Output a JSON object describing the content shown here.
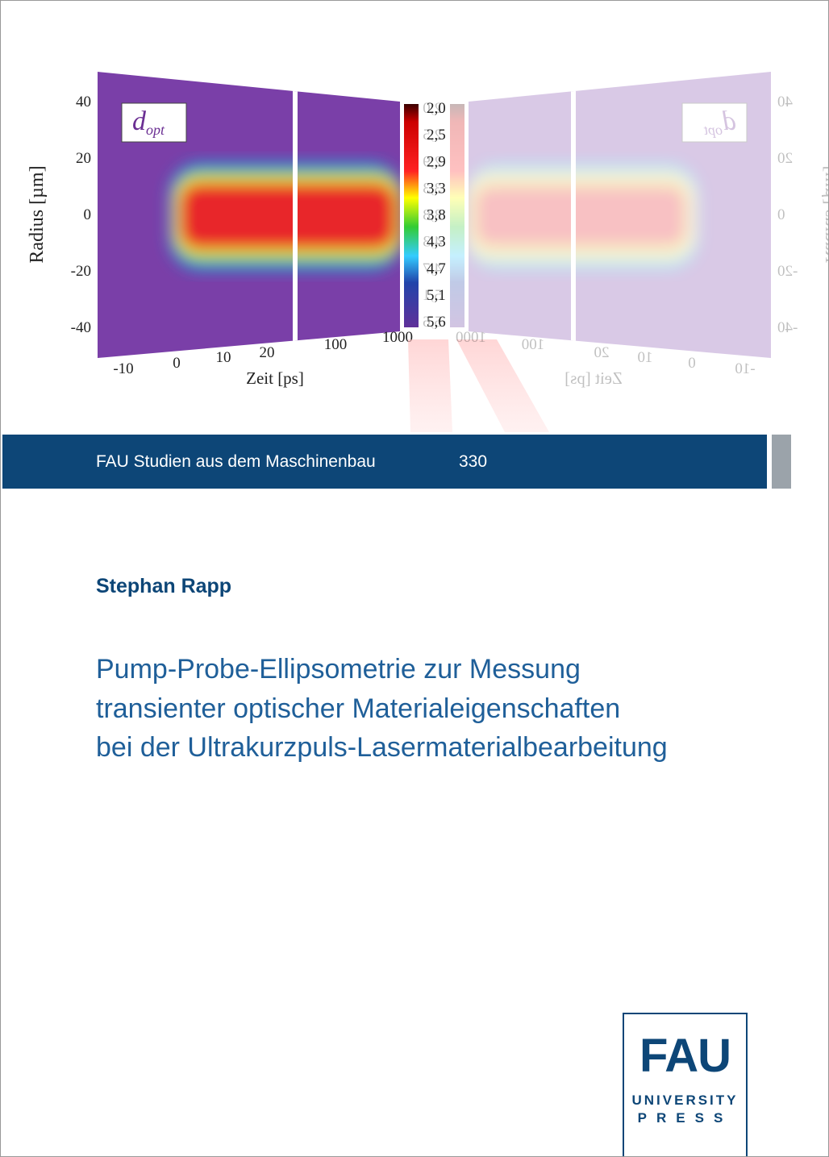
{
  "figure": {
    "ylabel": "Radius [µm]",
    "xlabel": "Zeit [ps]",
    "yticks": [
      "40",
      "20",
      "0",
      "-20",
      "-40"
    ],
    "xticks": [
      "-10",
      "0",
      "10",
      "20",
      "100",
      "1000"
    ],
    "inset_label": {
      "main": "d",
      "sub": "opt"
    },
    "colorbar_ticks": [
      "2,0",
      "2,5",
      "2,9",
      "3,3",
      "3,8",
      "4,3",
      "4,7",
      "5,1",
      "5,6"
    ]
  },
  "series_bar": {
    "series": "FAU Studien aus dem Maschinenbau",
    "number": "330"
  },
  "author": "Stephan Rapp",
  "title_lines": [
    "Pump-Probe-Ellipsometrie zur Messung",
    "transienter optischer Materialeigenschaften",
    "bei der Ultrakurzpuls-Lasermaterialbearbeitung"
  ],
  "logo": {
    "mark": "FAU",
    "line1": "UNIVERSITY",
    "line2": "PRESS"
  }
}
